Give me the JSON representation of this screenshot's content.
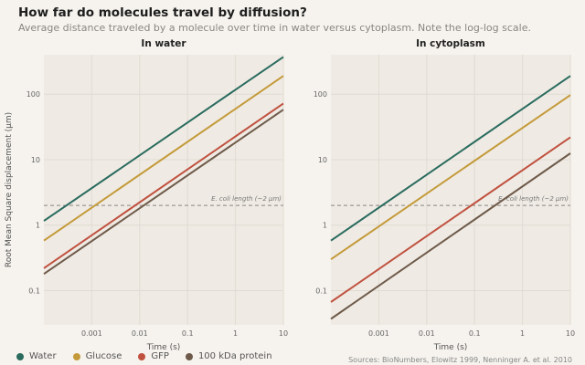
{
  "title": "How far do molecules travel by diffusion?",
  "subtitle": "Average distance traveled by a molecule over time in water versus cytoplasm. Note the log-log scale.",
  "source": "Sources: BioNumbers, Elowitz 1999, Nenninger A. et al. 2010",
  "colors": {
    "Water": "#2a6b5e",
    "Glucose": "#c49a3a",
    "GFP": "#c0513f",
    "100 kDa protein": "#6e5a4a"
  },
  "chart_data": [
    {
      "type": "line",
      "title": "In water",
      "xlabel": "Time (s)",
      "ylabel": "Root Mean Square displacement (μm)",
      "xscale": "log",
      "yscale": "log",
      "xlim": [
        0.0001,
        10
      ],
      "ylim": [
        0.03,
        400
      ],
      "x_ticks": [
        "0.001",
        "0.01",
        "0.1",
        "1",
        "10"
      ],
      "y_ticks": [
        "0.1",
        "1",
        "10",
        "100"
      ],
      "reference_line": {
        "y": 2,
        "label": "E. coli length (~2 μm)"
      },
      "series": [
        {
          "name": "Water",
          "x": [
            0.0001,
            10
          ],
          "y": [
            1.16,
            370
          ]
        },
        {
          "name": "Glucose",
          "x": [
            0.0001,
            10
          ],
          "y": [
            0.58,
            190
          ]
        },
        {
          "name": "GFP",
          "x": [
            0.0001,
            10
          ],
          "y": [
            0.22,
            72
          ]
        },
        {
          "name": "100 kDa protein",
          "x": [
            0.0001,
            10
          ],
          "y": [
            0.18,
            58
          ]
        }
      ]
    },
    {
      "type": "line",
      "title": "In cytoplasm",
      "xlabel": "Time (s)",
      "ylabel": "",
      "xscale": "log",
      "yscale": "log",
      "xlim": [
        0.0001,
        10
      ],
      "ylim": [
        0.03,
        400
      ],
      "x_ticks": [
        "0.001",
        "0.01",
        "0.1",
        "1",
        "10"
      ],
      "y_ticks": [
        "0.1",
        "1",
        "10",
        "100"
      ],
      "reference_line": {
        "y": 2,
        "label": "E. coli length (~2 μm)"
      },
      "series": [
        {
          "name": "Water",
          "x": [
            0.0001,
            10
          ],
          "y": [
            0.58,
            190
          ]
        },
        {
          "name": "Glucose",
          "x": [
            0.0001,
            10
          ],
          "y": [
            0.3,
            97
          ]
        },
        {
          "name": "GFP",
          "x": [
            0.0001,
            10
          ],
          "y": [
            0.067,
            22
          ]
        },
        {
          "name": "100 kDa protein",
          "x": [
            0.0001,
            10
          ],
          "y": [
            0.037,
            12.5
          ]
        }
      ]
    }
  ],
  "legend": [
    "Water",
    "Glucose",
    "GFP",
    "100 kDa protein"
  ]
}
